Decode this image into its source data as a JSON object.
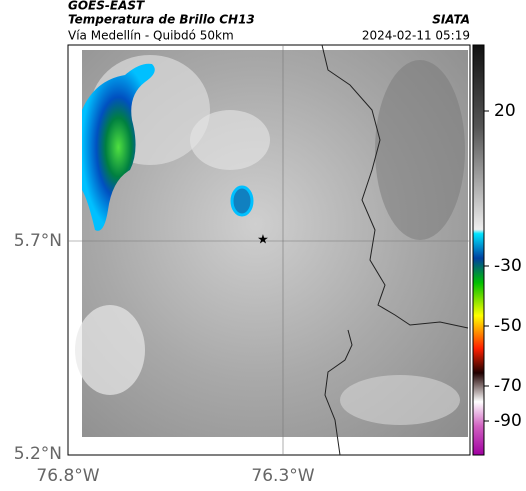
{
  "header": {
    "product": "GOES-EAST",
    "title": "Temperatura de Brillo CH13",
    "source": "SIATA",
    "subtitle": "Vía Medellín - Quibdó 50km",
    "timestamp": "2024-02-11 05:19"
  },
  "map": {
    "lat_labels": [
      "5.7°N",
      "5.2°N"
    ],
    "lon_labels": [
      "76.8°W",
      "76.3°W"
    ]
  },
  "colorbar": {
    "labels": [
      "20",
      "-30",
      "-50",
      "-70",
      "-90"
    ]
  }
}
